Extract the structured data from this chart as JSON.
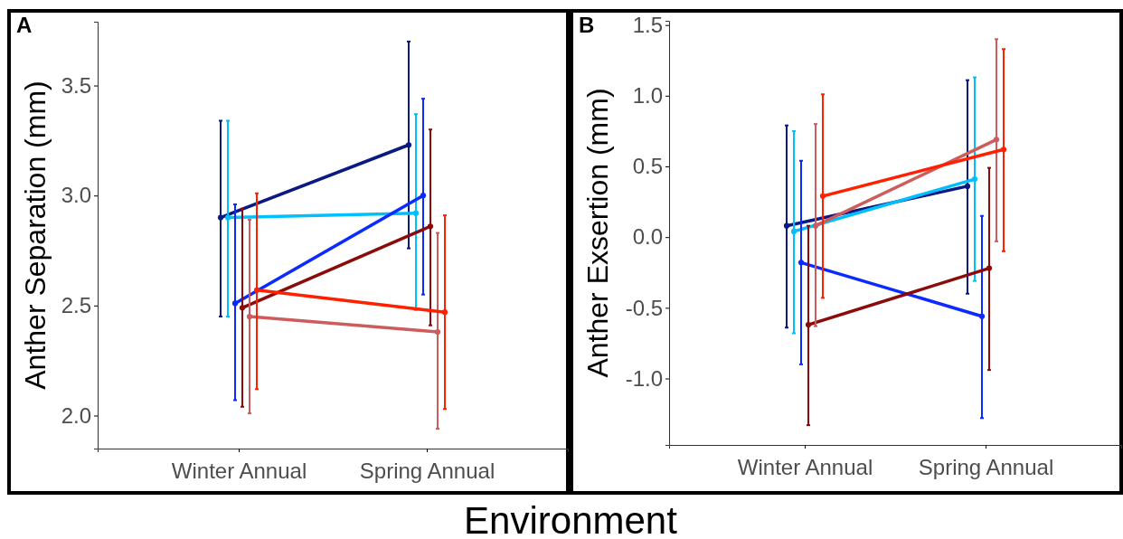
{
  "chart_data": [
    {
      "type": "line",
      "title": "A",
      "ylabel": "Anther Separation (mm)",
      "xlabel": "Environment",
      "categories": [
        "Winter Annual",
        "Spring Annual"
      ],
      "ylim": [
        1.85,
        3.79
      ],
      "yticks": [
        {
          "value": 2.0,
          "label": "2.0"
        },
        {
          "value": 2.5,
          "label": "2.5"
        },
        {
          "value": 3.0,
          "label": "3.0"
        },
        3.5
      ],
      "marker": "circle",
      "line_style": "solid",
      "series": [
        {
          "color": "#0a1a80",
          "values": [
            2.9,
            3.23
          ],
          "errors": [
            [
              2.45,
              3.34
            ],
            [
              2.76,
              3.7
            ]
          ]
        },
        {
          "color": "#00bfff",
          "values": [
            2.9,
            2.92
          ],
          "errors": [
            [
              2.45,
              3.34
            ],
            [
              2.48,
              3.37
            ]
          ]
        },
        {
          "color": "#0a2aff",
          "values": [
            2.51,
            3.0
          ],
          "errors": [
            [
              2.07,
              2.96
            ],
            [
              2.55,
              3.44
            ]
          ]
        },
        {
          "color": "#8b0a0a",
          "values": [
            2.49,
            2.86
          ],
          "errors": [
            [
              2.04,
              2.94
            ],
            [
              2.41,
              3.3
            ]
          ]
        },
        {
          "color": "#cd5c5c",
          "values": [
            2.45,
            2.38
          ],
          "errors": [
            [
              2.01,
              2.89
            ],
            [
              1.94,
              2.83
            ]
          ]
        },
        {
          "color": "#ff2000",
          "values": [
            2.57,
            2.47
          ],
          "errors": [
            [
              2.12,
              3.01
            ],
            [
              2.03,
              2.91
            ]
          ]
        }
      ]
    },
    {
      "type": "line",
      "title": "B",
      "ylabel": "Anther Exsertion (mm)",
      "categories": [
        "Winter Annual",
        "Spring Annual"
      ],
      "ylim": [
        -1.47,
        1.53
      ],
      "yticks": [
        {
          "value": -1.0,
          "label": "-1.0"
        },
        -0.5,
        {
          "value": 0.0,
          "label": "0.0"
        },
        0.5,
        {
          "value": 1.0,
          "label": "1.0"
        },
        1.5
      ],
      "marker": "circle",
      "line_style": "solid",
      "series": [
        {
          "color": "#0a1a80",
          "values": [
            0.08,
            0.36
          ],
          "errors": [
            [
              -0.64,
              0.79
            ],
            [
              -0.4,
              1.11
            ]
          ]
        },
        {
          "color": "#00bfff",
          "values": [
            0.04,
            0.41
          ],
          "errors": [
            [
              -0.68,
              0.75
            ],
            [
              -0.31,
              1.13
            ]
          ]
        },
        {
          "color": "#0a2aff",
          "values": [
            -0.18,
            -0.56
          ],
          "errors": [
            [
              -0.9,
              0.54
            ],
            [
              -1.28,
              0.15
            ]
          ]
        },
        {
          "color": "#8b0a0a",
          "values": [
            -0.62,
            -0.22
          ],
          "errors": [
            [
              -1.33,
              0.08
            ],
            [
              -0.94,
              0.49
            ]
          ]
        },
        {
          "color": "#cd5c5c",
          "values": [
            0.08,
            0.69
          ],
          "errors": [
            [
              -0.63,
              0.8
            ],
            [
              -0.03,
              1.4
            ]
          ]
        },
        {
          "color": "#ff2000",
          "values": [
            0.29,
            0.62
          ],
          "errors": [
            [
              -0.43,
              1.01
            ],
            [
              -0.1,
              1.33
            ]
          ]
        }
      ]
    }
  ]
}
